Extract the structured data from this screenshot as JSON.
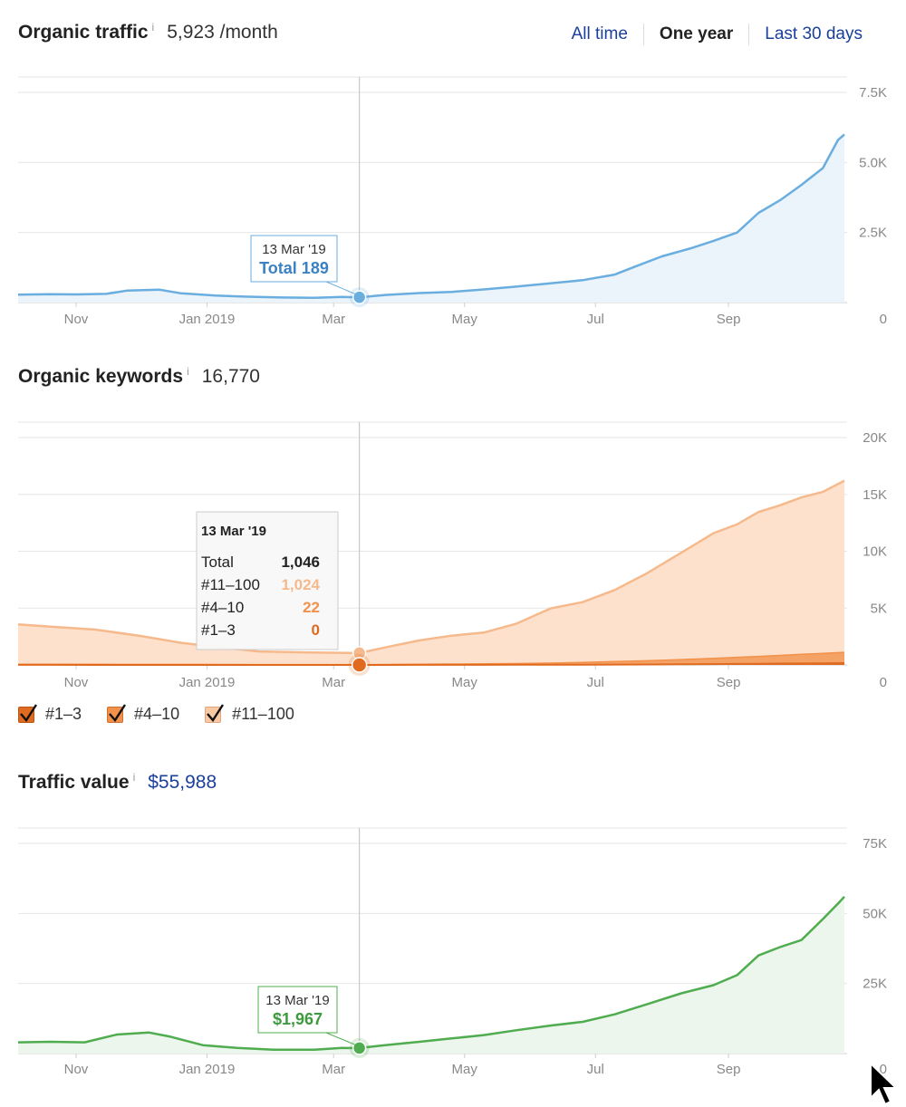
{
  "tabs": [
    {
      "label": "All time",
      "active": false
    },
    {
      "label": "One year",
      "active": true
    },
    {
      "label": "Last 30 days",
      "active": false
    }
  ],
  "sections": {
    "traffic": {
      "title": "Organic traffic",
      "info": "i",
      "value": "5,923 /month"
    },
    "keywords": {
      "title": "Organic keywords",
      "info": "i",
      "value": "16,770"
    },
    "value": {
      "title": "Traffic value",
      "info": "i",
      "value": "$55,988"
    }
  },
  "legend": [
    {
      "label": "#1–3",
      "color": "#e06a1f"
    },
    {
      "label": "#4–10",
      "color": "#f2914a"
    },
    {
      "label": "#11–100",
      "color": "#f9c9a3"
    }
  ],
  "tooltips": {
    "traffic": {
      "date": "13 Mar '19",
      "text": "Total 189"
    },
    "keywords": {
      "date": "13 Mar '19",
      "rows": [
        {
          "label": "Total",
          "value": "1,046"
        },
        {
          "label": "#11–100",
          "value": "1,024"
        },
        {
          "label": "#4–10",
          "value": "22"
        },
        {
          "label": "#1–3",
          "value": "0"
        }
      ]
    },
    "value": {
      "date": "13 Mar '19",
      "text": "$1,967"
    }
  },
  "chart_data": [
    {
      "type": "area",
      "id": "traffic",
      "color": "#6aaee0",
      "fill": "#eaf4fa",
      "x_ticks": [
        "Nov",
        "Jan 2019",
        "Mar",
        "May",
        "Jul",
        "Sep"
      ],
      "y_ticks": [
        "7.5K",
        "5.0K",
        "2.5K",
        "0"
      ],
      "ylim": [
        0,
        7500
      ],
      "highlight": {
        "date": "13 Mar '19",
        "value": 189
      },
      "series": [
        {
          "points": [
            [
              "2018-10-05",
              280
            ],
            [
              "2018-10-20",
              300
            ],
            [
              "2018-11-01",
              290
            ],
            [
              "2018-11-15",
              310
            ],
            [
              "2018-11-25",
              430
            ],
            [
              "2018-12-10",
              460
            ],
            [
              "2018-12-20",
              330
            ],
            [
              "2019-01-05",
              250
            ],
            [
              "2019-01-20",
              210
            ],
            [
              "2019-02-05",
              180
            ],
            [
              "2019-02-20",
              170
            ],
            [
              "2019-03-05",
              200
            ],
            [
              "2019-03-13",
              189
            ],
            [
              "2019-03-25",
              270
            ],
            [
              "2019-04-10",
              340
            ],
            [
              "2019-04-25",
              380
            ],
            [
              "2019-05-10",
              470
            ],
            [
              "2019-05-25",
              570
            ],
            [
              "2019-06-10",
              690
            ],
            [
              "2019-06-25",
              800
            ],
            [
              "2019-07-10",
              1000
            ],
            [
              "2019-07-20",
              1300
            ],
            [
              "2019-08-01",
              1650
            ],
            [
              "2019-08-15",
              1950
            ],
            [
              "2019-08-25",
              2200
            ],
            [
              "2019-09-05",
              2500
            ],
            [
              "2019-09-15",
              3200
            ],
            [
              "2019-09-25",
              3650
            ],
            [
              "2019-10-05",
              4200
            ],
            [
              "2019-10-15",
              4800
            ],
            [
              "2019-10-22",
              5800
            ],
            [
              "2019-10-25",
              6000
            ]
          ]
        }
      ]
    },
    {
      "type": "area",
      "id": "keywords",
      "stacked": true,
      "x_ticks": [
        "Nov",
        "Jan 2019",
        "Mar",
        "May",
        "Jul",
        "Sep"
      ],
      "y_ticks": [
        "20K",
        "15K",
        "10K",
        "5K",
        "0"
      ],
      "ylim": [
        0,
        20000
      ],
      "highlight": {
        "date": "13 Mar '19",
        "value": 1046
      },
      "series": [
        {
          "name": "#11–100",
          "color": "#f6b98c",
          "fill": "#fde1cc",
          "points": [
            [
              "2018-10-05",
              3500
            ],
            [
              "2018-10-20",
              3300
            ],
            [
              "2018-11-10",
              3050
            ],
            [
              "2018-12-01",
              2500
            ],
            [
              "2018-12-20",
              1900
            ],
            [
              "2019-01-10",
              1450
            ],
            [
              "2019-01-25",
              1150
            ],
            [
              "2019-02-15",
              1080
            ],
            [
              "2019-03-13",
              1024
            ],
            [
              "2019-03-25",
              1500
            ],
            [
              "2019-04-10",
              2100
            ],
            [
              "2019-04-25",
              2500
            ],
            [
              "2019-05-10",
              2750
            ],
            [
              "2019-05-25",
              3500
            ],
            [
              "2019-06-10",
              4800
            ],
            [
              "2019-06-25",
              5300
            ],
            [
              "2019-07-10",
              6300
            ],
            [
              "2019-07-25",
              7700
            ],
            [
              "2019-08-10",
              9400
            ],
            [
              "2019-08-25",
              11000
            ],
            [
              "2019-09-05",
              11700
            ],
            [
              "2019-09-15",
              12700
            ],
            [
              "2019-09-25",
              13200
            ],
            [
              "2019-10-05",
              13800
            ],
            [
              "2019-10-15",
              14200
            ],
            [
              "2019-10-25",
              15100
            ]
          ]
        },
        {
          "name": "#4–10",
          "color": "#f2914a",
          "fill": "#f5a266",
          "points": [
            [
              "2018-10-05",
              60
            ],
            [
              "2019-03-13",
              22
            ],
            [
              "2019-06-01",
              110
            ],
            [
              "2019-08-01",
              350
            ],
            [
              "2019-09-15",
              650
            ],
            [
              "2019-10-25",
              950
            ]
          ]
        },
        {
          "name": "#1–3",
          "color": "#e06a1f",
          "fill": "#e06a1f",
          "points": [
            [
              "2018-10-05",
              5
            ],
            [
              "2019-03-13",
              0
            ],
            [
              "2019-07-01",
              20
            ],
            [
              "2019-09-01",
              80
            ],
            [
              "2019-10-25",
              160
            ]
          ]
        }
      ]
    },
    {
      "type": "area",
      "id": "value",
      "color": "#4fac4f",
      "fill": "#ecf6ec",
      "x_ticks": [
        "Nov",
        "Jan 2019",
        "Mar",
        "May",
        "Jul",
        "Sep"
      ],
      "y_ticks": [
        "75K",
        "50K",
        "25K",
        "0"
      ],
      "ylim": [
        0,
        75000
      ],
      "highlight": {
        "date": "13 Mar '19",
        "value": 1967
      },
      "series": [
        {
          "points": [
            [
              "2018-10-05",
              4000
            ],
            [
              "2018-10-20",
              4200
            ],
            [
              "2018-11-05",
              4000
            ],
            [
              "2018-11-20",
              6800
            ],
            [
              "2018-12-05",
              7500
            ],
            [
              "2018-12-15",
              6000
            ],
            [
              "2018-12-30",
              3000
            ],
            [
              "2019-01-15",
              2000
            ],
            [
              "2019-02-01",
              1400
            ],
            [
              "2019-02-20",
              1400
            ],
            [
              "2019-03-05",
              2000
            ],
            [
              "2019-03-13",
              1967
            ],
            [
              "2019-03-25",
              3000
            ],
            [
              "2019-04-10",
              4200
            ],
            [
              "2019-04-25",
              5400
            ],
            [
              "2019-05-10",
              6600
            ],
            [
              "2019-05-25",
              8300
            ],
            [
              "2019-06-10",
              10000
            ],
            [
              "2019-06-25",
              11300
            ],
            [
              "2019-07-10",
              14000
            ],
            [
              "2019-07-25",
              17600
            ],
            [
              "2019-08-10",
              21500
            ],
            [
              "2019-08-25",
              24400
            ],
            [
              "2019-09-05",
              28000
            ],
            [
              "2019-09-15",
              35000
            ],
            [
              "2019-09-25",
              38000
            ],
            [
              "2019-10-05",
              40500
            ],
            [
              "2019-10-15",
              48000
            ],
            [
              "2019-10-22",
              53500
            ],
            [
              "2019-10-25",
              55988
            ]
          ]
        }
      ]
    }
  ]
}
